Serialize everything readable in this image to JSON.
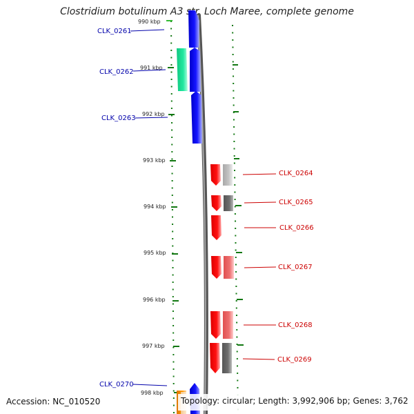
{
  "title": "Clostridium botulinum A3 str. Loch Maree, complete genome",
  "accession": "Accession: NC_010520",
  "summary": "Topology: circular; Length: 3,992,906 bp; Genes: 3,762",
  "ruler": [
    "990 kbp",
    "991 kbp",
    "992 kbp",
    "993 kbp",
    "994 kbp",
    "995 kbp",
    "996 kbp",
    "997 kbp",
    "998 kbp"
  ],
  "colors": {
    "forward_cds": "#0000ee",
    "reverse_cds": "#ee0000",
    "rna": "#22dd99",
    "other": "#ee8800",
    "backbone": "#888888",
    "ticks": "#117711",
    "label_forward": "#0000aa",
    "label_reverse": "#cc0000"
  },
  "labels_left": [
    "CLK_0261",
    "CLK_0262",
    "CLK_0263",
    "CLK_0270"
  ],
  "labels_right": [
    "CLK_0264",
    "CLK_0265",
    "CLK_0266",
    "CLK_0267",
    "CLK_0268",
    "CLK_0269"
  ]
}
